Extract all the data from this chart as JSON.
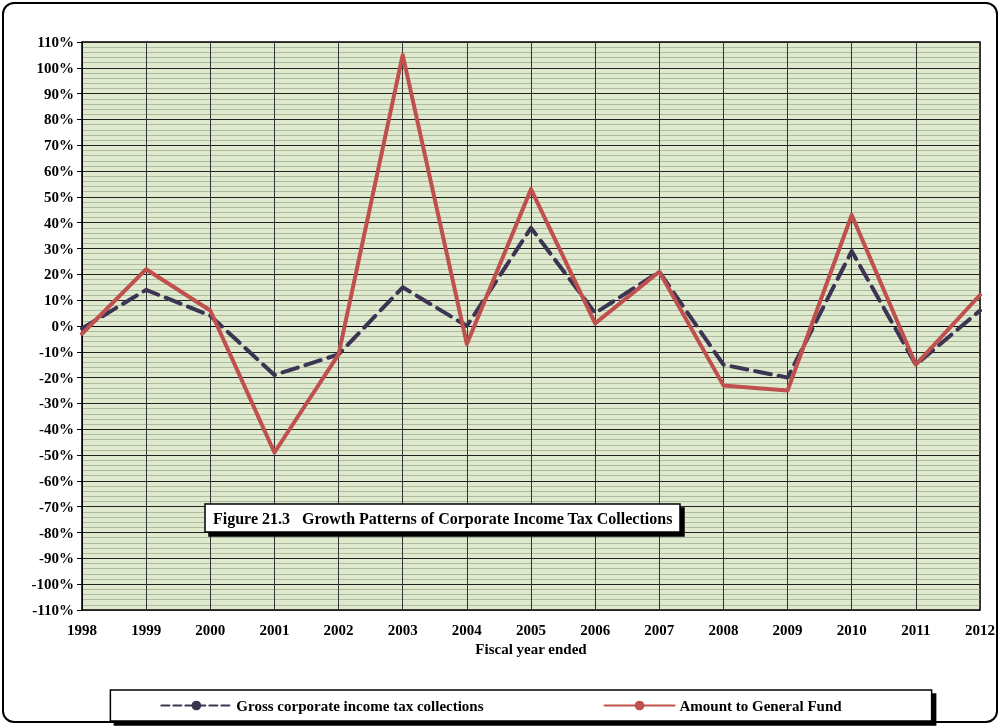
{
  "chart_data": {
    "type": "line",
    "title": "Figure 21.3   Growth Patterns of Corporate Income Tax Collections",
    "xlabel": "Fiscal year ended",
    "categories": [
      "1998",
      "1999",
      "2000",
      "2001",
      "2002",
      "2003",
      "2004",
      "2005",
      "2006",
      "2007",
      "2008",
      "2009",
      "2010",
      "2011",
      "2012"
    ],
    "series": [
      {
        "name": "Gross corporate income tax collections",
        "color": "#3b3453",
        "line_style": "dashed",
        "values": [
          -1,
          14,
          4,
          -19,
          -11,
          15,
          0,
          38,
          5,
          21,
          -15,
          -20,
          29,
          -15,
          6
        ]
      },
      {
        "name": "Amount to General Fund",
        "color": "#c0504d",
        "line_style": "solid",
        "values": [
          -3,
          22,
          6,
          -49,
          -11,
          105,
          -7,
          53,
          1,
          21,
          -23,
          -25,
          43,
          -15,
          12
        ]
      }
    ],
    "ylim": [
      -110,
      110
    ],
    "yticks": [
      {
        "value": -110,
        "label": "-110%"
      },
      {
        "value": -100,
        "label": "-100%"
      },
      {
        "value": -90,
        "label": "-90%"
      },
      {
        "value": -80,
        "label": "-80%"
      },
      {
        "value": -70,
        "label": "-70%"
      },
      {
        "value": -60,
        "label": "-60%"
      },
      {
        "value": -50,
        "label": "-50%"
      },
      {
        "value": -40,
        "label": "-40%"
      },
      {
        "value": -30,
        "label": "-30%"
      },
      {
        "value": -20,
        "label": "-20%"
      },
      {
        "value": -10,
        "label": "-10%"
      },
      {
        "value": 0,
        "label": "0%"
      },
      {
        "value": 10,
        "label": "10%"
      },
      {
        "value": 20,
        "label": "20%"
      },
      {
        "value": 30,
        "label": "30%"
      },
      {
        "value": 40,
        "label": "40%"
      },
      {
        "value": 50,
        "label": "50%"
      },
      {
        "value": 60,
        "label": "60%"
      },
      {
        "value": 70,
        "label": "70%"
      },
      {
        "value": 80,
        "label": "80%"
      },
      {
        "value": 90,
        "label": "90%"
      },
      {
        "value": 100,
        "label": "100%"
      },
      {
        "value": 110,
        "label": "110%"
      }
    ],
    "grid": true,
    "legend": "bottom",
    "marker": "none"
  }
}
